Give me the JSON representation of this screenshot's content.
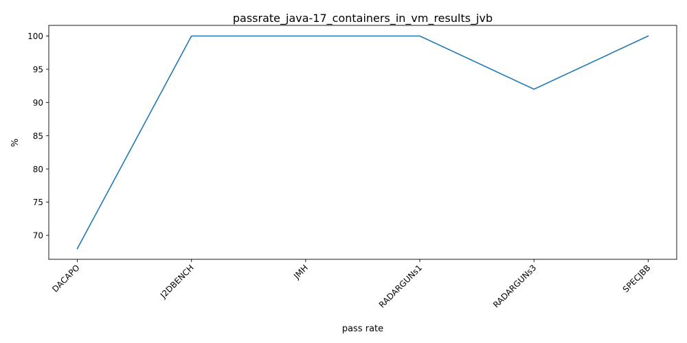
{
  "chart_data": {
    "type": "line",
    "title": "passrate_java-17_containers_in_vm_results_jvb",
    "xlabel": "pass rate",
    "ylabel": "%",
    "categories": [
      "DACAPO",
      "J2DBENCH",
      "JMH",
      "RADARGUNs1",
      "RADARGUNs3",
      "SPECJBB"
    ],
    "series": [
      {
        "values": [
          68,
          100,
          100,
          100,
          92,
          100
        ]
      }
    ],
    "ylim": [
      66.4,
      101.6
    ],
    "yticks": [
      70,
      75,
      80,
      85,
      90,
      95,
      100
    ],
    "grid": false,
    "line_color": "#1f77b4"
  }
}
